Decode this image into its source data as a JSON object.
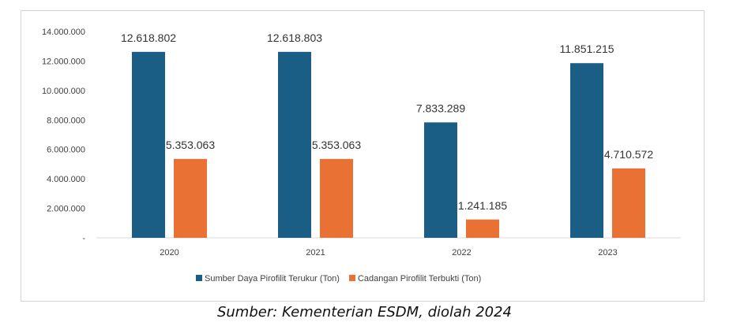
{
  "chart_data": {
    "type": "bar",
    "title": "",
    "xlabel": "",
    "ylabel": "",
    "categories": [
      "2020",
      "2021",
      "2022",
      "2023"
    ],
    "ylim": [
      0,
      14000000
    ],
    "yticks": [
      0,
      2000000,
      4000000,
      6000000,
      8000000,
      10000000,
      12000000,
      14000000
    ],
    "ytick_labels": [
      "-",
      "2.000.000",
      "4.000.000",
      "6.000.000",
      "8.000.000",
      "10.000.000",
      "12.000.000",
      "14.000.000"
    ],
    "grid": false,
    "legend_position": "bottom",
    "series": [
      {
        "name": "Sumber Daya Pirofilit Terukur (Ton)",
        "color": "#1b5e85",
        "values": [
          12618802,
          12618803,
          7833289,
          11851215
        ],
        "labels": [
          "12.618.802",
          "12.618.803",
          "7.833.289",
          "11.851.215"
        ]
      },
      {
        "name": "Cadangan Pirofilit Terbukti (Ton)",
        "color": "#ea7134",
        "values": [
          5353063,
          5353063,
          1241185,
          4710572
        ],
        "labels": [
          "5.353.063",
          "5.353.063",
          "1.241.185",
          "4.710.572"
        ]
      }
    ]
  },
  "source_note": "Sumber: Kementerian ESDM, diolah 2024"
}
